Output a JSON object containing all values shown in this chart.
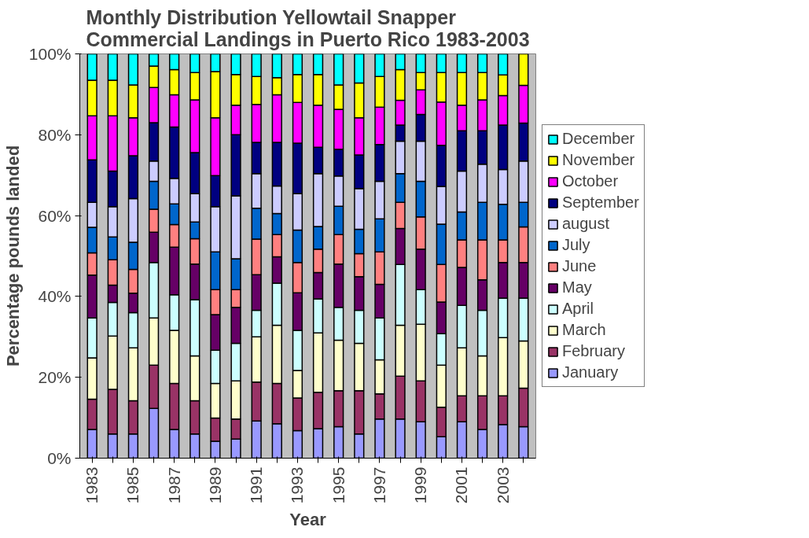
{
  "chart_data": {
    "type": "bar",
    "stacked": true,
    "title": "Monthly Distribution Yellowtail Snapper\nCommercial Landings in Puerto Rico 1983-2003",
    "xlabel": "Year",
    "ylabel": "Percentage pounds landed",
    "categories": [
      "1983",
      null,
      "1985",
      null,
      "1987",
      null,
      "1989",
      null,
      "1991",
      null,
      "1993",
      null,
      "1995",
      null,
      "1997",
      null,
      "1999",
      null,
      "2001",
      null,
      "2003",
      null
    ],
    "ylim": [
      0,
      100
    ],
    "yticks": [
      {
        "value": 0,
        "label": "0%"
      },
      {
        "value": 20,
        "label": "20%"
      },
      {
        "value": 40,
        "label": "40%"
      },
      {
        "value": 60,
        "label": "60%"
      },
      {
        "value": 80,
        "label": "80%"
      },
      {
        "value": 100,
        "label": "100%"
      }
    ],
    "grid": false,
    "legend": "right",
    "series": [
      {
        "name": "January",
        "color": "#9999ff",
        "values": [
          7.1,
          6.0,
          6.0,
          12.3,
          7.1,
          6.0,
          4.2,
          4.7,
          9.2,
          8.5,
          6.8,
          7.3,
          7.8,
          6.0,
          9.7,
          9.7,
          9.0,
          5.3,
          9.0,
          7.1,
          8.3,
          7.8
        ]
      },
      {
        "name": "February",
        "color": "#993366",
        "values": [
          7.5,
          11.0,
          8.2,
          10.7,
          11.4,
          8.2,
          5.7,
          5.0,
          9.6,
          10.0,
          8.1,
          9.0,
          8.9,
          10.7,
          6.2,
          10.6,
          10.1,
          7.3,
          6.4,
          8.3,
          7.1,
          9.5
        ]
      },
      {
        "name": "March",
        "color": "#ffffcc",
        "values": [
          10.2,
          13.2,
          13.1,
          11.7,
          13.1,
          11.1,
          8.6,
          9.4,
          11.2,
          14.4,
          6.8,
          14.7,
          12.5,
          11.7,
          8.4,
          12.6,
          14.0,
          10.4,
          11.9,
          9.9,
          14.4,
          11.7
        ]
      },
      {
        "name": "April",
        "color": "#ccffff",
        "values": [
          9.9,
          8.3,
          8.7,
          13.7,
          8.8,
          13.9,
          8.2,
          9.3,
          6.6,
          10.4,
          9.9,
          8.4,
          8.1,
          8.2,
          10.4,
          15.0,
          8.6,
          7.8,
          10.5,
          11.3,
          9.8,
          10.6
        ]
      },
      {
        "name": "May",
        "color": "#660066",
        "values": [
          10.6,
          4.3,
          4.8,
          7.5,
          11.8,
          8.8,
          8.8,
          8.9,
          8.8,
          6.5,
          9.3,
          6.5,
          10.7,
          8.3,
          8.3,
          8.9,
          10.0,
          7.8,
          9.4,
          7.5,
          8.8,
          8.8
        ]
      },
      {
        "name": "June",
        "color": "#ff8080",
        "values": [
          5.5,
          6.3,
          5.9,
          5.7,
          5.6,
          6.3,
          6.2,
          4.4,
          8.8,
          5.5,
          7.5,
          5.8,
          7.3,
          5.7,
          8.0,
          6.5,
          8.0,
          9.3,
          6.8,
          9.9,
          5.6,
          8.8
        ]
      },
      {
        "name": "July",
        "color": "#0066cc",
        "values": [
          6.3,
          5.6,
          6.7,
          6.9,
          5.1,
          4.1,
          9.3,
          7.6,
          7.6,
          5.2,
          8.0,
          5.6,
          7.0,
          6.0,
          8.2,
          7.1,
          8.8,
          10.0,
          6.9,
          9.3,
          8.8,
          6.1
        ]
      },
      {
        "name": "august",
        "color": "#ccccff",
        "values": [
          6.2,
          7.5,
          10.8,
          5.0,
          6.3,
          7.0,
          11.2,
          15.6,
          8.6,
          6.8,
          9.0,
          13.1,
          7.5,
          10.1,
          9.3,
          8.0,
          9.9,
          9.3,
          10.1,
          9.4,
          8.6,
          10.2
        ]
      },
      {
        "name": "September",
        "color": "#000080",
        "values": [
          10.5,
          8.8,
          10.6,
          9.5,
          12.7,
          10.2,
          7.7,
          15.1,
          7.7,
          10.8,
          12.5,
          6.5,
          6.6,
          8.3,
          9.1,
          4.0,
          6.6,
          10.2,
          10.0,
          8.3,
          11.0,
          9.4
        ]
      },
      {
        "name": "October",
        "color": "#ff00ff",
        "values": [
          10.9,
          13.7,
          9.4,
          8.7,
          8.0,
          13.0,
          14.3,
          7.3,
          9.4,
          11.8,
          10.1,
          10.4,
          9.9,
          9.2,
          9.2,
          6.1,
          6.1,
          10.7,
          6.3,
          7.6,
          7.3,
          9.3
        ]
      },
      {
        "name": "November",
        "color": "#ffff00",
        "values": [
          8.8,
          8.8,
          8.1,
          5.3,
          6.2,
          6.8,
          11.4,
          7.6,
          6.9,
          4.2,
          6.9,
          7.6,
          6.0,
          8.6,
          7.6,
          7.6,
          4.3,
          7.3,
          8.1,
          6.8,
          5.1,
          7.8
        ]
      },
      {
        "name": "December",
        "color": "#00ffff",
        "values": [
          6.5,
          6.5,
          7.7,
          3.0,
          3.9,
          4.6,
          4.4,
          5.1,
          5.6,
          5.9,
          5.1,
          5.1,
          7.7,
          7.2,
          5.6,
          3.9,
          4.6,
          4.6,
          4.6,
          4.6,
          5.2,
          0
        ]
      }
    ]
  }
}
